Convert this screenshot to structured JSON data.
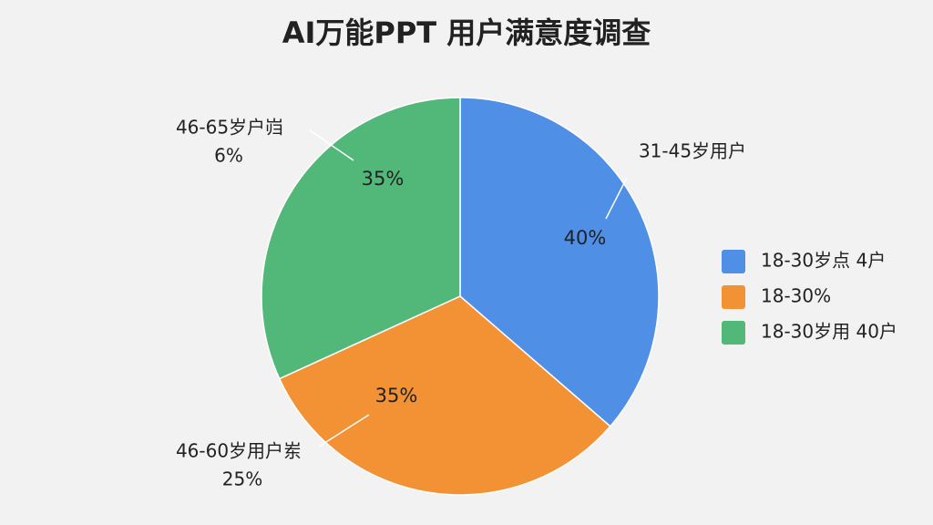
{
  "chart_data": {
    "type": "pie",
    "title": "AI万能PPT 用户满意度调查",
    "categories": [
      "18-30岁点 4户",
      "18-30%",
      "18-30岁用 40户"
    ],
    "values": [
      40,
      35,
      35
    ],
    "value_labels": [
      "40%",
      "35%",
      "35%"
    ],
    "colors": [
      "#4f8fe6",
      "#f39234",
      "#52b87a"
    ],
    "annotations": [
      {
        "text": "31-45岁用户"
      },
      {
        "text": "46-60岁用户岽",
        "subtext": "25%"
      },
      {
        "text": "46-65岁户岿",
        "subtext": "6%"
      }
    ]
  }
}
